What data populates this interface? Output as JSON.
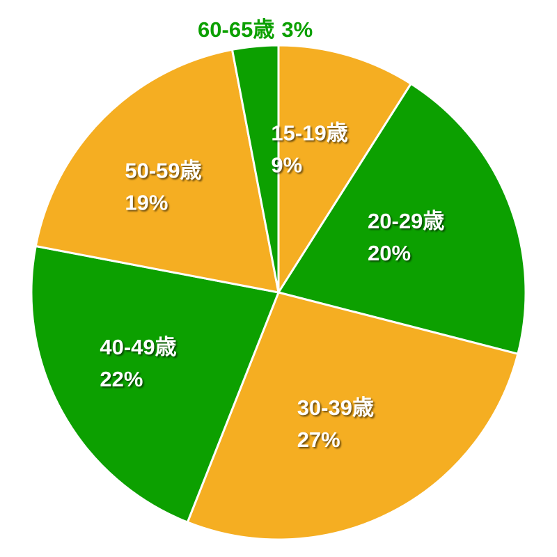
{
  "chart_data": {
    "type": "pie",
    "categories": [
      "15-19歳",
      "20-29歳",
      "30-39歳",
      "40-49歳",
      "50-59歳",
      "60-65歳"
    ],
    "values": [
      9,
      20,
      27,
      22,
      19,
      3
    ],
    "value_labels": [
      "9%",
      "20%",
      "27%",
      "22%",
      "19%",
      "3%"
    ],
    "colors": [
      "#f5ae22",
      "#0ca000",
      "#f5ae22",
      "#0ca000",
      "#f5ae22",
      "#0ca000"
    ]
  }
}
